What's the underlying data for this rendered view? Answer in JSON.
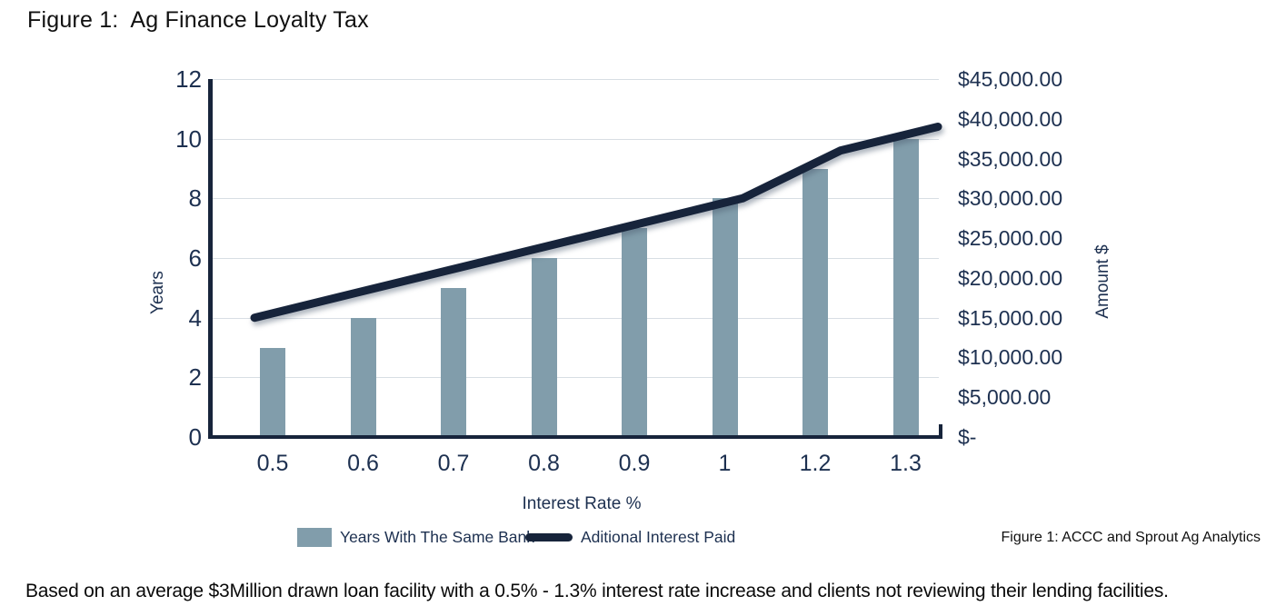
{
  "title": "Figure 1:  Ag Finance Loyalty Tax",
  "source_caption": "Figure 1:  ACCC and Sprout Ag Analytics",
  "footnote": "Based on an average $3Million drawn loan facility with a 0.5% - 1.3% interest rate increase and clients not reviewing their lending facilities.",
  "colors": {
    "bar": "#819dab",
    "line": "#17243b",
    "axis": "#17243b",
    "tick_text": "#1d3050",
    "gridline": "#d8dee4"
  },
  "chart_data": {
    "type": "combo-bar-line",
    "categories": [
      "0.5",
      "0.6",
      "0.7",
      "0.8",
      "0.9",
      "1",
      "1.2",
      "1.3"
    ],
    "xlabel": "Interest Rate %",
    "series": [
      {
        "name": "Years With The Same Bank",
        "type": "bar",
        "axis": "left",
        "values": [
          3,
          4,
          5,
          6,
          7,
          8,
          9,
          10
        ]
      },
      {
        "name": "Aditional Interest Paid",
        "type": "line",
        "axis": "right",
        "values": [
          15000,
          18000,
          21000,
          24000,
          27000,
          30000,
          36000,
          39000
        ]
      }
    ],
    "left_axis": {
      "label": "Years",
      "min": 0,
      "max": 12,
      "tick_step": 2,
      "ticks": [
        "12",
        "10",
        "8",
        "6",
        "4",
        "2",
        "0"
      ]
    },
    "right_axis": {
      "label": "Amount $",
      "min": 0,
      "max": 45000,
      "tick_step": 5000,
      "ticks": [
        "$45,000.00",
        "$40,000.00",
        "$35,000.00",
        "$30,000.00",
        "$25,000.00",
        "$20,000.00",
        "$15,000.00",
        "$10,000.00",
        "$5,000.00",
        "$-"
      ]
    },
    "grid": true,
    "legend_position": "bottom",
    "legend": [
      {
        "swatch": "bar",
        "label": "Years With The Same Bank"
      },
      {
        "swatch": "line",
        "label": "Aditional Interest Paid"
      }
    ]
  }
}
